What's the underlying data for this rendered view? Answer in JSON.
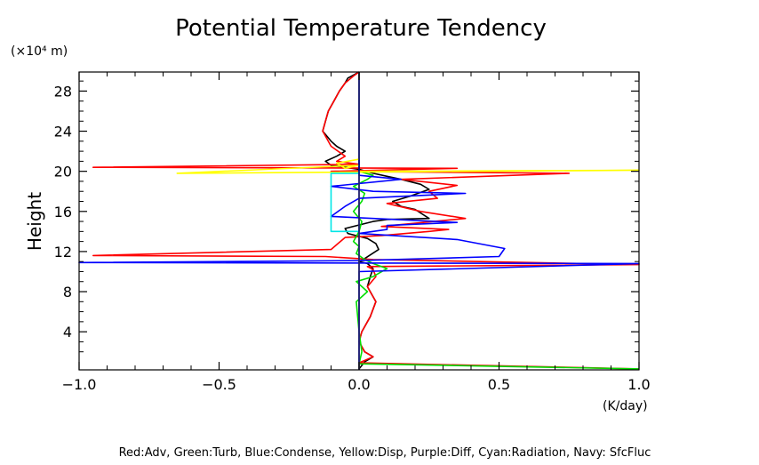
{
  "chart_data": {
    "type": "line",
    "title": "Potential Temperature Tendency",
    "ylabel": "Height",
    "y_unit_label": "(×10⁴ m)",
    "x_unit_label": "(K/day)",
    "xlim": [
      -1.0,
      1.0
    ],
    "ylim": [
      0.2,
      29.9
    ],
    "x_ticks": [
      -1.0,
      -0.5,
      0.0,
      0.5,
      1.0
    ],
    "x_tick_labels": [
      "−1.0",
      "−0.5",
      "0.0",
      "0.5",
      "1.0"
    ],
    "y_ticks": [
      4,
      8,
      12,
      16,
      20,
      24,
      28
    ],
    "y_tick_labels": [
      "4",
      "8",
      "12",
      "16",
      "20",
      "24",
      "28"
    ],
    "grid": false,
    "legend_text": "Red:Adv, Green:Turb, Blue:Condense, Yellow:Disp, Purple:Diff, Cyan:Radiation, Navy: SfcFluc",
    "series": [
      {
        "color": "#000000",
        "x": [
          0.0,
          0.02,
          0.05,
          0.02,
          0.0,
          0.01,
          0.04,
          0.06,
          0.05,
          0.03,
          0.04,
          0.05,
          0.03,
          0.0,
          0.02,
          0.07,
          0.06,
          0.03,
          -0.04,
          -0.05,
          0.05,
          0.1,
          0.25,
          0.2,
          0.15,
          0.12,
          0.18,
          0.25,
          0.22,
          0.15,
          0.1,
          0.05,
          0.0,
          -0.1,
          -0.12,
          -0.08,
          -0.05,
          -0.08,
          -0.1,
          -0.13,
          -0.12,
          -0.11,
          -0.09,
          -0.07,
          -0.05,
          -0.04,
          -0.02,
          0.0
        ],
        "y": [
          0.3,
          1.0,
          1.5,
          2.0,
          3.0,
          4.0,
          5.5,
          7.0,
          7.5,
          8.5,
          9.5,
          10.3,
          10.8,
          11.0,
          11.3,
          12.2,
          12.8,
          13.3,
          13.8,
          14.3,
          15.0,
          15.2,
          15.3,
          16.2,
          16.5,
          17.0,
          17.5,
          18.2,
          18.7,
          19.2,
          19.5,
          19.8,
          20.2,
          20.6,
          21.0,
          21.5,
          22.0,
          22.5,
          23.0,
          24.0,
          25.0,
          26.0,
          27.0,
          28.0,
          28.8,
          29.3,
          29.6,
          29.9
        ]
      },
      {
        "color": "#ff0000",
        "x": [
          1.0,
          0.0,
          0.05,
          0.02,
          0.0,
          0.01,
          0.04,
          0.06,
          0.05,
          0.03,
          0.06,
          0.05,
          0.03,
          1.0,
          0.05,
          -0.12,
          -0.95,
          -0.1,
          -0.05,
          0.08,
          0.25,
          0.32,
          0.08,
          0.38,
          0.22,
          0.1,
          0.28,
          0.25,
          0.35,
          0.15,
          0.75,
          -0.1,
          0.35,
          -0.95,
          0.0,
          -0.08,
          -0.05,
          -0.1,
          -0.13,
          -0.12,
          -0.11,
          -0.09,
          -0.07,
          -0.05,
          -0.02,
          0.0
        ],
        "y": [
          0.3,
          0.9,
          1.5,
          2.0,
          3.0,
          4.0,
          5.5,
          7.0,
          7.5,
          8.5,
          9.5,
          10.2,
          10.5,
          10.7,
          11.2,
          11.5,
          11.6,
          12.2,
          13.4,
          13.6,
          14.0,
          14.2,
          14.5,
          15.3,
          16.0,
          16.8,
          17.3,
          18.0,
          18.6,
          19.2,
          19.8,
          20.0,
          20.3,
          20.4,
          20.7,
          21.0,
          21.5,
          22.5,
          24.0,
          25.0,
          26.0,
          27.0,
          28.0,
          28.8,
          29.5,
          29.9
        ]
      },
      {
        "color": "#00dd00",
        "x": [
          1.0,
          0.0,
          0.01,
          0.0,
          -0.01,
          0.03,
          -0.01,
          0.05,
          0.1,
          0.05,
          0.02,
          -0.01,
          0.0,
          -0.02,
          0.0,
          0.01,
          -0.02,
          0.01,
          0.02,
          -0.02,
          0.03,
          0.05,
          0.0,
          0.0
        ],
        "y": [
          0.3,
          0.8,
          2.0,
          4.0,
          7.0,
          8.0,
          9.0,
          9.5,
          10.3,
          10.8,
          11.2,
          11.8,
          12.5,
          13.0,
          14.0,
          15.0,
          16.0,
          17.0,
          17.8,
          18.5,
          19.2,
          19.6,
          20.0,
          29.9
        ]
      },
      {
        "color": "#0000ff",
        "x": [
          0.0,
          0.0,
          0.0,
          1.0,
          -1.0,
          0.0,
          0.5,
          0.52,
          0.35,
          0.0,
          0.1,
          0.1,
          0.35,
          -0.1,
          -0.05,
          0.0,
          0.38,
          0.05,
          -0.1,
          0.15,
          0.0,
          0.0,
          0.0
        ],
        "y": [
          0.3,
          4.0,
          10.0,
          10.8,
          10.9,
          11.1,
          11.5,
          12.3,
          13.2,
          13.8,
          14.2,
          14.6,
          14.9,
          15.5,
          16.5,
          17.3,
          17.8,
          18.0,
          18.5,
          19.2,
          19.6,
          20.0,
          29.9
        ]
      },
      {
        "color": "#ffff00",
        "x": [
          0.0,
          0.0,
          0.0,
          1.0,
          -0.65,
          0.0,
          -0.05,
          -0.08,
          0.0,
          0.0
        ],
        "y": [
          0.3,
          10.0,
          20.0,
          20.1,
          19.8,
          20.6,
          20.3,
          20.8,
          21.2,
          29.9
        ]
      },
      {
        "color": "#00e6e6",
        "x": [
          0.0,
          -0.1,
          -0.1,
          0.0,
          0.0
        ],
        "y": [
          14.0,
          14.0,
          19.8,
          19.8,
          20.0
        ]
      },
      {
        "color": "#000080",
        "x": [
          0.0,
          0.0
        ],
        "y": [
          0.2,
          29.9
        ]
      }
    ]
  }
}
